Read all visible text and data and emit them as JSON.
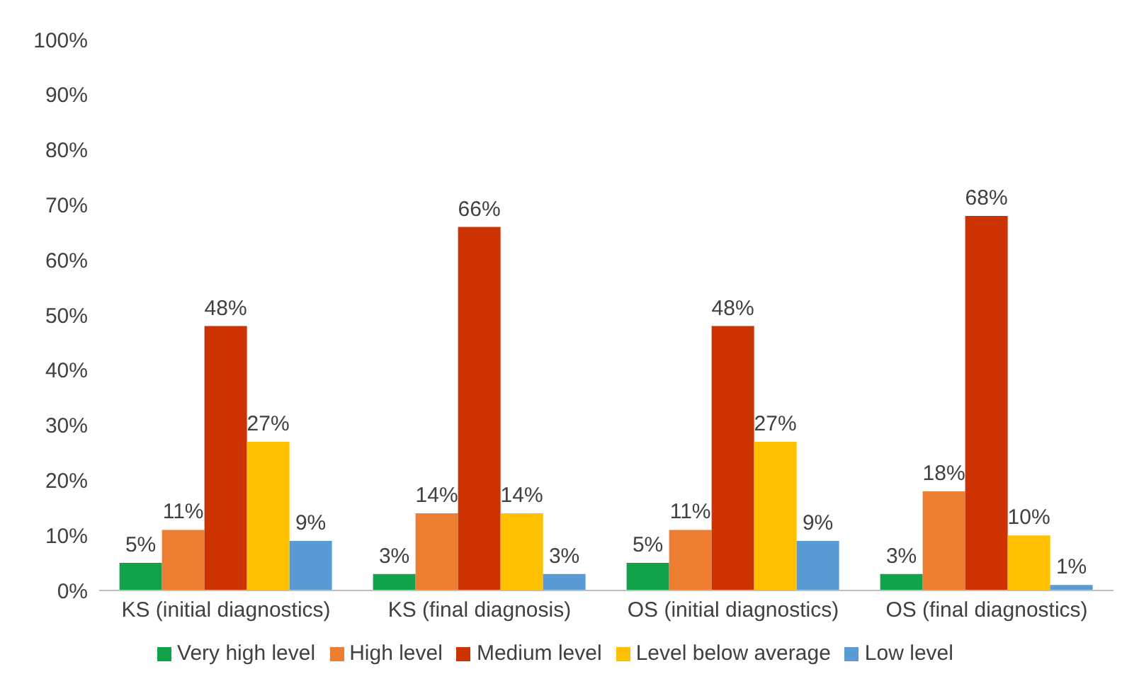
{
  "chart_data": {
    "type": "bar",
    "categories": [
      "KS (initial diagnostics)",
      "KS (final diagnosis)",
      "OS (initial diagnostics)",
      "OS (final diagnostics)"
    ],
    "series": [
      {
        "name": "Very high level",
        "color": "#12a34a",
        "values": [
          5,
          3,
          5,
          3
        ],
        "value_labels": [
          "5%",
          "3%",
          "5%",
          "3%"
        ]
      },
      {
        "name": "High level",
        "color": "#ed7d31",
        "values": [
          11,
          14,
          11,
          18
        ],
        "value_labels": [
          "11%",
          "14%",
          "11%",
          "18%"
        ]
      },
      {
        "name": "Medium level",
        "color": "#cc3300",
        "values": [
          48,
          66,
          48,
          68
        ],
        "value_labels": [
          "48%",
          "66%",
          "48%",
          "68%"
        ]
      },
      {
        "name": "Level below average",
        "color": "#ffc000",
        "values": [
          27,
          14,
          27,
          10
        ],
        "value_labels": [
          "27%",
          "14%",
          "27%",
          "10%"
        ]
      },
      {
        "name": "Low level",
        "color": "#5b9bd5",
        "values": [
          9,
          3,
          9,
          1
        ],
        "value_labels": [
          "9%",
          "3%",
          "9%",
          "1%"
        ]
      }
    ],
    "ylim": [
      0,
      100
    ],
    "yticks": [
      {
        "value": 0,
        "label": "0%"
      },
      {
        "value": 10,
        "label": "10%"
      },
      {
        "value": 20,
        "label": "20%"
      },
      {
        "value": 30,
        "label": "30%"
      },
      {
        "value": 40,
        "label": "40%"
      },
      {
        "value": 50,
        "label": "50%"
      },
      {
        "value": 60,
        "label": "60%"
      },
      {
        "value": 70,
        "label": "70%"
      },
      {
        "value": 80,
        "label": "80%"
      },
      {
        "value": 90,
        "label": "90%"
      },
      {
        "value": 100,
        "label": "100%"
      }
    ],
    "grid": false,
    "legend": "bottom"
  }
}
